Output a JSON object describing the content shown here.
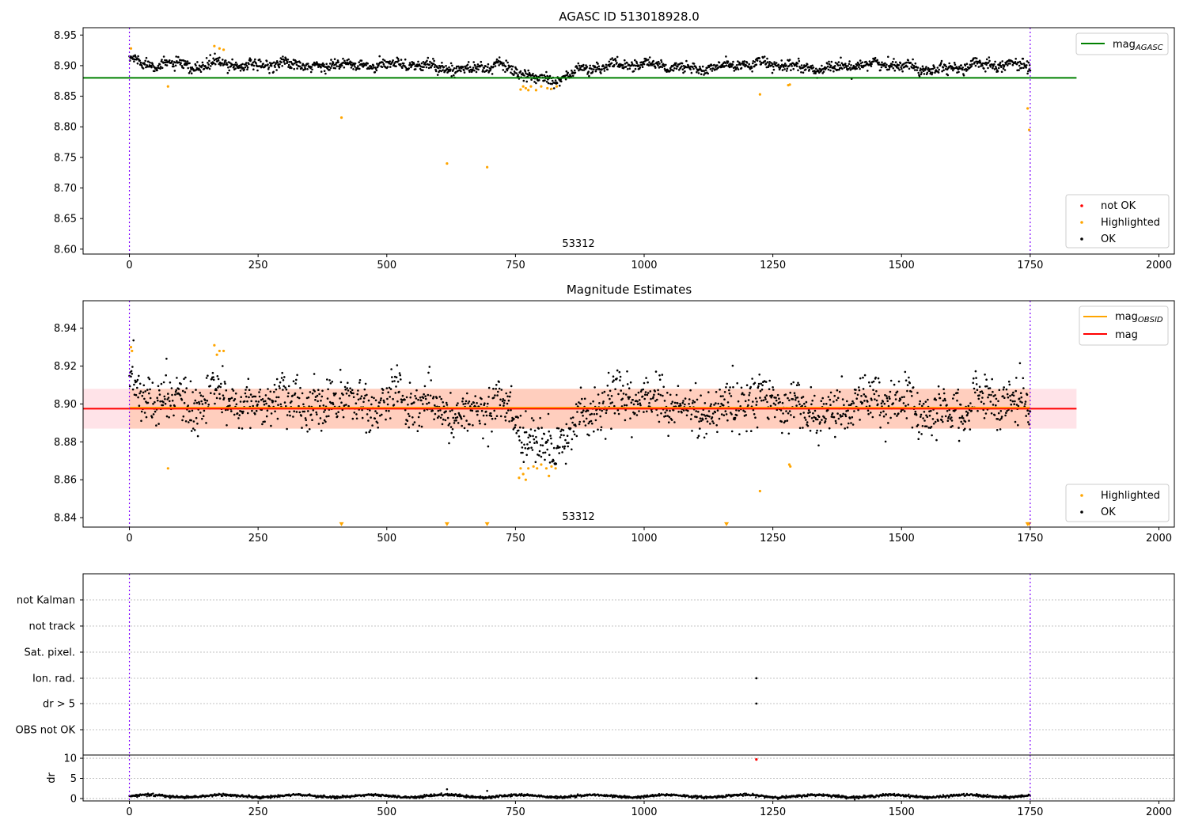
{
  "chart_data": [
    {
      "type": "scatter",
      "title": "AGASC ID 513018928.0",
      "xlim": [
        -90,
        2030
      ],
      "ylim": [
        8.592,
        8.962
      ],
      "xticks": [
        "0",
        "250",
        "500",
        "750",
        "1000",
        "1250",
        "1500",
        "1750",
        "2000"
      ],
      "yticks": [
        "8.60",
        "8.65",
        "8.70",
        "8.75",
        "8.80",
        "8.85",
        "8.90",
        "8.95"
      ],
      "annotation": "53312",
      "hline": {
        "label": "mag",
        "sub": "AGASC",
        "value": 8.88,
        "color": "#008000"
      },
      "legend_lines": [
        {
          "label": "mag",
          "sub": "AGASC",
          "color": "#008000"
        }
      ],
      "legend_points": [
        {
          "label": "not OK",
          "color": "#ff0000"
        },
        {
          "label": "Highlighted",
          "color": "#ffa500"
        },
        {
          "label": "OK",
          "color": "#000000"
        }
      ],
      "obs_boundaries": [
        0,
        1750
      ],
      "series": [
        {
          "name": "OK",
          "color": "#000000",
          "description": "dense black points, baseline 8.90 with dip to ~8.875 near 760-860"
        },
        {
          "name": "Highlighted",
          "color": "#ffa500",
          "x": [
            3,
            75,
            165,
            175,
            183,
            412,
            617,
            695,
            760,
            765,
            770,
            775,
            780,
            790,
            800,
            812,
            820,
            830,
            1225,
            1280,
            1283,
            1745,
            1748
          ],
          "y": [
            8.928,
            8.866,
            8.932,
            8.928,
            8.926,
            8.815,
            8.74,
            8.734,
            8.861,
            8.866,
            8.863,
            8.86,
            8.866,
            8.86,
            8.866,
            8.863,
            8.862,
            8.866,
            8.853,
            8.868,
            8.869,
            8.83,
            8.795
          ]
        }
      ]
    },
    {
      "type": "scatter",
      "title": "Magnitude Estimates",
      "xlim": [
        -90,
        2030
      ],
      "ylim": [
        8.835,
        8.9545
      ],
      "xticks": [
        "0",
        "250",
        "500",
        "750",
        "1000",
        "1250",
        "1500",
        "1750",
        "2000"
      ],
      "yticks": [
        "8.84",
        "8.86",
        "8.88",
        "8.90",
        "8.92",
        "8.94"
      ],
      "annotation": "53312",
      "mag_line": {
        "label": "mag",
        "value": 8.8975,
        "color": "#ff0000"
      },
      "mag_obsid_line": {
        "label": "mag",
        "sub": "OBSID",
        "value": 8.8975,
        "color": "#ffa500"
      },
      "band": {
        "low": 8.887,
        "high": 8.908
      },
      "legend_lines": [
        {
          "label": "mag",
          "sub": "OBSID",
          "color": "#ffa500"
        },
        {
          "label": "mag",
          "sub": "",
          "color": "#ff0000"
        }
      ],
      "legend_points": [
        {
          "label": "Highlighted",
          "color": "#ffa500"
        },
        {
          "label": "OK",
          "color": "#000000"
        }
      ],
      "obs_boundaries": [
        0,
        1750
      ],
      "series": [
        {
          "name": "OK",
          "color": "#000000",
          "description": "black points scattered 8.87-8.92, dip to ~8.875 near 760-860"
        },
        {
          "name": "Highlighted",
          "color": "#ffa500",
          "x": [
            3,
            5,
            75,
            165,
            170,
            175,
            183,
            757,
            760,
            765,
            770,
            775,
            785,
            792,
            800,
            810,
            815,
            820,
            828,
            1225,
            1282,
            1284
          ],
          "y": [
            8.93,
            8.928,
            8.866,
            8.931,
            8.926,
            8.928,
            8.928,
            8.861,
            8.866,
            8.863,
            8.86,
            8.866,
            8.867,
            8.866,
            8.868,
            8.866,
            8.862,
            8.867,
            8.866,
            8.854,
            8.868,
            8.867
          ]
        },
        {
          "name": "Highlighted (below range)",
          "color": "#ffa500",
          "marker": "triangle-down",
          "x": [
            412,
            617,
            695,
            1160,
            1745,
            1748
          ],
          "y": [
            8.8365,
            8.8365,
            8.8365,
            8.8365,
            8.8365,
            8.8365
          ]
        }
      ]
    },
    {
      "type": "scatter",
      "title": "",
      "xlim": [
        -90,
        2030
      ],
      "categories": [
        "not Kalman",
        "not track",
        "Sat. pixel.",
        "Ion. rad.",
        "dr > 5",
        "OBS not OK"
      ],
      "flags": [
        {
          "category": "Ion. rad.",
          "x": 1218
        },
        {
          "category": "dr > 5",
          "x": 1218
        }
      ],
      "obs_boundaries": [
        0,
        1750
      ]
    },
    {
      "type": "line",
      "title": "",
      "ylabel": "dr",
      "xlim": [
        -90,
        2030
      ],
      "ylim": [
        -0.6,
        10.8
      ],
      "xticks": [
        "0",
        "250",
        "500",
        "750",
        "1000",
        "1250",
        "1500",
        "1750",
        "2000"
      ],
      "yticks": [
        "0",
        "5",
        "10"
      ],
      "series": [
        {
          "name": "OK",
          "color": "#000000",
          "description": "dr near 0.3-1.2 across all points"
        },
        {
          "name": "outliers",
          "color": "#000000",
          "x": [
            617,
            695
          ],
          "y": [
            2.3,
            1.9
          ]
        },
        {
          "name": "not OK",
          "color": "#ff0000",
          "x": [
            1218
          ],
          "y": [
            9.7
          ]
        }
      ],
      "obs_boundaries": [
        0,
        1750
      ]
    }
  ]
}
